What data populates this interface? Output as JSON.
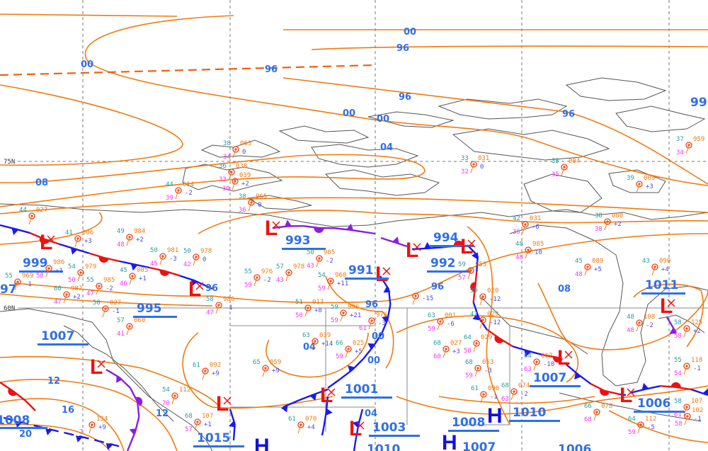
{
  "colors": {
    "isobar": "#f07a10",
    "label": "#2f6fe8",
    "low": "#ee1111",
    "high": "#1111dd",
    "cold_front": "#1a1aee",
    "warm_front": "#ee1111",
    "occluded_front": "#8a1ee0",
    "station_temp": "#2a9d9d",
    "station_pressure": "#f07a10",
    "station_dewpoint": "#ff33ff",
    "station_tendency": "#4a4ae8"
  },
  "grid_labels": {
    "lat75": "75N",
    "lat60": "60N"
  },
  "isobar_labels": [
    "00",
    "00",
    "00",
    "00",
    "00",
    "00",
    "96",
    "96",
    "96",
    "96",
    "96",
    "96",
    "96",
    "08",
    "08",
    "04",
    "04",
    "04",
    "12",
    "12",
    "16",
    "20",
    "97",
    "99"
  ],
  "centers": [
    {
      "type": "low",
      "letter": "L",
      "value": "999"
    },
    {
      "type": "low",
      "letter": "L",
      "value": "995"
    },
    {
      "type": "low",
      "letter": "L",
      "value": "993"
    },
    {
      "type": "low",
      "letter": "L",
      "value": "991"
    },
    {
      "type": "low",
      "letter": "L",
      "value": "994"
    },
    {
      "type": "low",
      "letter": "L",
      "value": "992"
    },
    {
      "type": "low",
      "letter": "L",
      "value": "1007"
    },
    {
      "type": "low",
      "letter": "L",
      "value": "1015"
    },
    {
      "type": "low",
      "letter": "L",
      "value": "1001"
    },
    {
      "type": "low",
      "letter": "L",
      "value": "1003"
    },
    {
      "type": "low",
      "letter": "L",
      "value": "1007"
    },
    {
      "type": "low",
      "letter": "L",
      "value": "1006"
    },
    {
      "type": "low",
      "letter": "L",
      "value": "1011"
    },
    {
      "type": "high",
      "letter": "H",
      "value": "1010"
    },
    {
      "type": "high",
      "letter": "H",
      "value": "1007"
    },
    {
      "type": "high",
      "letter": "H",
      "value": ""
    },
    {
      "type": "none",
      "letter": "",
      "value": "1008"
    },
    {
      "type": "none",
      "letter": "",
      "value": "1008"
    },
    {
      "type": "none",
      "letter": "",
      "value": "1006"
    },
    {
      "type": "none",
      "letter": "",
      "value": "1010"
    }
  ],
  "fronts": [
    {
      "type": "stationary"
    },
    {
      "type": "occluded"
    },
    {
      "type": "occluded"
    },
    {
      "type": "stationary"
    },
    {
      "type": "stationary"
    },
    {
      "type": "stationary"
    },
    {
      "type": "stationary"
    },
    {
      "type": "occluded"
    },
    {
      "type": "cold"
    },
    {
      "type": "cold"
    },
    {
      "type": "cold"
    },
    {
      "type": "cold"
    },
    {
      "type": "occluded"
    },
    {
      "type": "cold-dashed"
    },
    {
      "type": "warm"
    },
    {
      "type": "cold"
    }
  ],
  "stations": [
    {
      "t": "49",
      "p": "984",
      "d": "48",
      "tend": "+2"
    },
    {
      "t": "50",
      "p": "981",
      "d": "45",
      "tend": "-3"
    },
    {
      "t": "50",
      "p": "978",
      "d": "42",
      "tend": "0"
    },
    {
      "t": "55",
      "p": "969",
      "d": "",
      "tend": "-1"
    },
    {
      "t": "",
      "p": "986",
      "d": "58",
      "tend": "+1"
    },
    {
      "t": "54",
      "p": "979",
      "d": "50",
      "tend": ""
    },
    {
      "t": "55",
      "p": "985",
      "d": "47",
      "tend": "-2"
    },
    {
      "t": "60",
      "p": "987",
      "d": "47",
      "tend": "+2"
    },
    {
      "t": "45",
      "p": "005",
      "d": "46",
      "tend": "+1"
    },
    {
      "t": "58",
      "p": "027",
      "d": "",
      "tend": "-1"
    },
    {
      "t": "57",
      "p": "060",
      "d": "41",
      "tend": ""
    },
    {
      "t": "58",
      "p": "986",
      "d": "47",
      "tend": "-1"
    },
    {
      "t": "41",
      "p": "006",
      "d": "",
      "tend": "+3"
    },
    {
      "t": "50",
      "p": "985",
      "d": "43",
      "tend": "-2"
    },
    {
      "t": "54",
      "p": "960",
      "d": "59",
      "tend": "+11"
    },
    {
      "t": "57",
      "p": "978",
      "d": "43",
      "tend": ""
    },
    {
      "t": "55",
      "p": "976",
      "d": "59",
      "tend": "-2"
    },
    {
      "t": "59",
      "p": "953",
      "d": "57",
      "tend": ""
    },
    {
      "t": "",
      "p": "",
      "d": "",
      "tend": "-15"
    },
    {
      "t": "51",
      "p": "013",
      "d": "50",
      "tend": "+8"
    },
    {
      "t": "59",
      "p": "996",
      "d": "59",
      "tend": "+21"
    },
    {
      "t": "",
      "p": "976",
      "d": "61",
      "tend": "-3"
    },
    {
      "t": "63",
      "p": "039",
      "d": "",
      "tend": "+14"
    },
    {
      "t": "66",
      "p": "025",
      "d": "59",
      "tend": "+5"
    },
    {
      "t": "63",
      "p": "001",
      "d": "59",
      "tend": "-6"
    },
    {
      "t": "68",
      "p": "027",
      "d": "60",
      "tend": "+3"
    },
    {
      "t": "39",
      "p": "020",
      "d": "",
      "tend": "-12"
    },
    {
      "t": "42",
      "p": "029",
      "d": "",
      "tend": "-12"
    },
    {
      "t": "64",
      "p": "029",
      "d": "58",
      "tend": ""
    },
    {
      "t": "68",
      "p": "053",
      "d": "59",
      "tend": "-3"
    },
    {
      "t": "48",
      "p": "108",
      "d": "48",
      "tend": "-2"
    },
    {
      "t": "58",
      "p": "125",
      "d": "58",
      "tend": "+2"
    },
    {
      "t": "55",
      "p": "118",
      "d": "54",
      "tend": "-1"
    },
    {
      "t": "64",
      "p": "067",
      "d": "63",
      "tend": "-10"
    },
    {
      "t": "68",
      "p": "074",
      "d": "63",
      "tend": "-2"
    },
    {
      "t": "61",
      "p": "090",
      "d": "",
      "tend": "-1"
    },
    {
      "t": "58",
      "p": "107",
      "d": "61",
      "tend": ""
    },
    {
      "t": "",
      "p": "102",
      "d": "58",
      "tend": "-1"
    },
    {
      "t": "64",
      "p": "112",
      "d": "59",
      "tend": "-5"
    },
    {
      "t": "66",
      "p": "078",
      "d": "68",
      "tend": ""
    },
    {
      "t": "33",
      "p": "031",
      "d": "32",
      "tend": "0"
    },
    {
      "t": "38",
      "p": "004",
      "d": "35",
      "tend": ""
    },
    {
      "t": "39",
      "p": "009",
      "d": "",
      "tend": "+3"
    },
    {
      "t": "37",
      "p": "959",
      "d": "34",
      "tend": ""
    },
    {
      "t": "38",
      "p": "080",
      "d": "38",
      "tend": "+2"
    },
    {
      "t": "42",
      "p": "031",
      "d": "36",
      "tend": "-6"
    },
    {
      "t": "48",
      "p": "985",
      "d": "48",
      "tend": "10"
    },
    {
      "t": "45",
      "p": "089",
      "d": "48",
      "tend": "+5"
    },
    {
      "t": "43",
      "p": "090",
      "d": "",
      "tend": "+4"
    },
    {
      "t": "38",
      "p": "063",
      "d": "34",
      "tend": "0"
    },
    {
      "t": "36",
      "p": "038",
      "d": "33",
      "tend": ""
    },
    {
      "t": "",
      "p": "039",
      "d": "30",
      "tend": "+2"
    },
    {
      "t": "44",
      "p": "014",
      "d": "39",
      "tend": "-2"
    },
    {
      "t": "38",
      "p": "965",
      "d": "36",
      "tend": "0"
    },
    {
      "t": "44",
      "p": "027",
      "d": "",
      "tend": ""
    },
    {
      "t": "61",
      "p": "092",
      "d": "",
      "tend": "+9"
    },
    {
      "t": "65",
      "p": "059",
      "d": "",
      "tend": "+9"
    },
    {
      "t": "61",
      "p": "070",
      "d": "",
      "tend": "+4"
    },
    {
      "t": "54",
      "p": "112",
      "d": "70",
      "tend": ""
    },
    {
      "t": "",
      "p": "134",
      "d": "7",
      "tend": "+9"
    },
    {
      "t": "68",
      "p": "107",
      "d": "57",
      "tend": "+1"
    }
  ]
}
